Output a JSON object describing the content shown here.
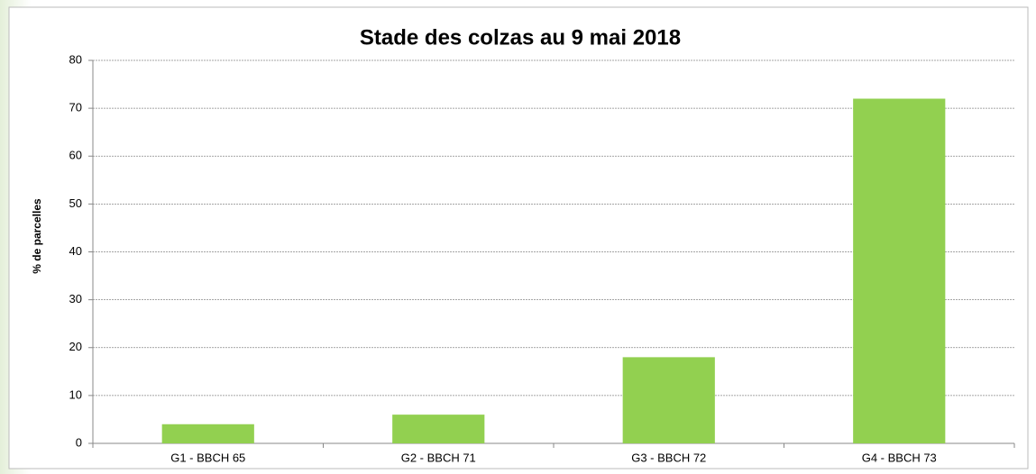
{
  "chart_data": {
    "type": "bar",
    "title": "Stade des colzas au 9 mai 2018",
    "y_label": "% de parcelles",
    "categories": [
      "G1 - BBCH 65",
      "G2 - BBCH 71",
      "G3 - BBCH 72",
      "G4 - BBCH 73"
    ],
    "values": [
      4,
      6,
      18,
      72
    ],
    "color": "#92d050",
    "ylim": [
      0,
      80
    ],
    "yticks": [
      0,
      10,
      20,
      30,
      40,
      50,
      60,
      70,
      80
    ],
    "grid": true
  }
}
